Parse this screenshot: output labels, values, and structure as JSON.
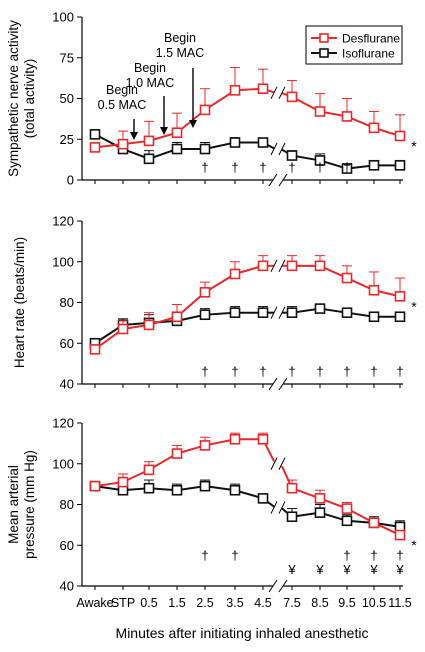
{
  "figure": {
    "xlabel": "Minutes after initiating inhaled anesthetic",
    "x_ticks": [
      "Awake",
      "STP",
      "0.5",
      "1.5",
      "2.5",
      "3.5",
      "4.5",
      "7.5",
      "8.5",
      "9.5",
      "10.5",
      "11.5"
    ],
    "colors": {
      "desflurane": "#e8282a",
      "isoflurane": "#111111"
    },
    "legend": [
      "Desflurane",
      "Isoflurane"
    ],
    "axis_break_between": [
      "4.5",
      "7.5"
    ]
  },
  "chart_data": [
    {
      "type": "line",
      "ylabel": [
        "Sympathetic nerve activity",
        "(total activity)"
      ],
      "ylim": [
        0,
        100
      ],
      "yticks": [
        0,
        25,
        50,
        75,
        100
      ],
      "categories": [
        "Awake",
        "STP",
        "0.5",
        "1.5",
        "2.5",
        "3.5",
        "4.5",
        "7.5",
        "8.5",
        "9.5",
        "10.5",
        "11.5"
      ],
      "series": [
        {
          "name": "Desflurane",
          "values": [
            20,
            22,
            24,
            29,
            43,
            55,
            56,
            51,
            42,
            39,
            32,
            27
          ],
          "err": [
            0,
            8,
            12,
            12,
            13,
            14,
            12,
            10,
            11,
            11,
            10,
            13
          ]
        },
        {
          "name": "Isoflurane",
          "values": [
            28,
            19,
            13,
            19,
            19,
            23,
            23,
            15,
            12,
            7,
            9,
            9
          ],
          "err": [
            0,
            4,
            5,
            4,
            4,
            3,
            2,
            3,
            4,
            3,
            3,
            3
          ]
        }
      ],
      "significance": {
        "positions": [
          "2.5",
          "3.5",
          "4.5",
          "7.5",
          "8.5",
          "9.5"
        ],
        "marks": [
          "†",
          "†",
          "†",
          "†",
          "†",
          "†"
        ]
      },
      "right_marker": "*",
      "annotations": [
        {
          "lines": [
            "Begin",
            "0.5 MAC"
          ],
          "at": "0.5"
        },
        {
          "lines": [
            "Begin",
            "1.0 MAC"
          ],
          "at": "1.5"
        },
        {
          "lines": [
            "Begin",
            "1.5 MAC"
          ],
          "at": "2.5"
        }
      ],
      "legend": "top-right"
    },
    {
      "type": "line",
      "ylabel": [
        "Heart rate (beats/min)"
      ],
      "ylim": [
        40,
        120
      ],
      "yticks": [
        40,
        60,
        80,
        100,
        120
      ],
      "categories": [
        "Awake",
        "STP",
        "0.5",
        "1.5",
        "2.5",
        "3.5",
        "4.5",
        "7.5",
        "8.5",
        "9.5",
        "10.5",
        "11.5"
      ],
      "series": [
        {
          "name": "Desflurane",
          "values": [
            57,
            67,
            69,
            73,
            85,
            94,
            98,
            98,
            98,
            92,
            86,
            83
          ],
          "err": [
            0,
            4,
            6,
            6,
            5,
            6,
            5,
            5,
            5,
            6,
            9,
            9
          ]
        },
        {
          "name": "Isoflurane",
          "values": [
            60,
            69,
            70,
            71,
            74,
            75,
            75,
            75,
            77,
            75,
            73,
            73
          ],
          "err": [
            0,
            3,
            4,
            4,
            3,
            3,
            3,
            3,
            2,
            2,
            2,
            2
          ]
        }
      ],
      "significance": {
        "positions": [
          "2.5",
          "3.5",
          "4.5",
          "7.5",
          "8.5",
          "9.5",
          "10.5",
          "11.5"
        ],
        "marks": [
          "†",
          "†",
          "†",
          "†",
          "†",
          "†",
          "†",
          "†"
        ]
      },
      "right_marker": "*"
    },
    {
      "type": "line",
      "ylabel": [
        "Mean arterial",
        "pressure (mm Hg)"
      ],
      "ylim": [
        40,
        120
      ],
      "yticks": [
        40,
        60,
        80,
        100,
        120
      ],
      "categories": [
        "Awake",
        "STP",
        "0.5",
        "1.5",
        "2.5",
        "3.5",
        "4.5",
        "7.5",
        "8.5",
        "9.5",
        "10.5",
        "11.5"
      ],
      "series": [
        {
          "name": "Desflurane",
          "values": [
            89,
            91,
            97,
            105,
            109,
            112,
            112,
            88,
            83,
            78,
            71,
            65
          ],
          "err": [
            0,
            4,
            4,
            4,
            4,
            3,
            3,
            4,
            4,
            3,
            2,
            2
          ]
        },
        {
          "name": "Isoflurane",
          "values": [
            89,
            87,
            88,
            87,
            89,
            87,
            83,
            74,
            76,
            72,
            71,
            69
          ],
          "err": [
            0,
            5,
            4,
            3,
            3,
            3,
            2,
            4,
            4,
            3,
            3,
            3
          ]
        }
      ],
      "significance": {
        "positions": [
          "2.5",
          "3.5",
          "7.5",
          "8.5",
          "9.5",
          "9.5",
          "10.5",
          "10.5",
          "11.5",
          "11.5"
        ],
        "marks": [
          "†",
          "†",
          "¥",
          "¥",
          "†",
          "¥",
          "†",
          "¥",
          "†",
          "¥"
        ]
      },
      "right_marker": "*"
    }
  ]
}
